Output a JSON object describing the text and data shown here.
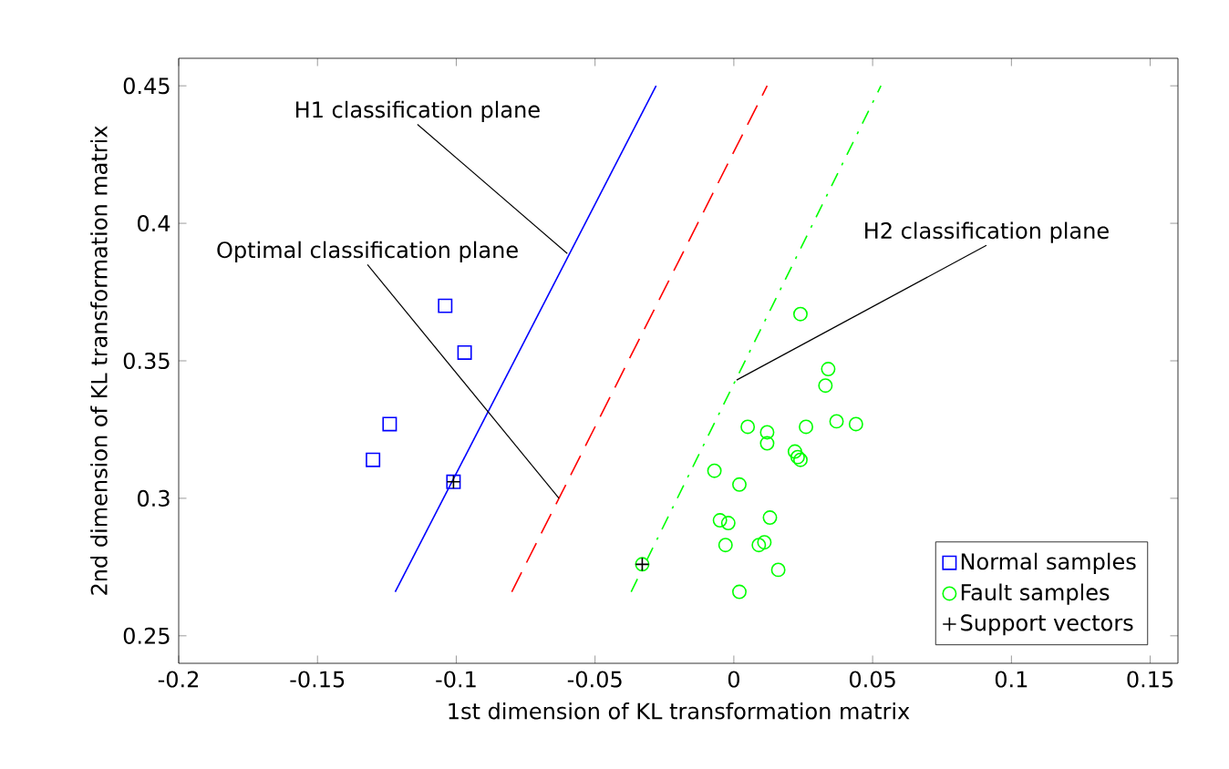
{
  "chart_data": {
    "type": "scatter",
    "xlabel": "1st dimension of KL transformation matrix",
    "ylabel": "2nd dimension of KL transformation matrix",
    "xlim": [
      -0.2,
      0.16
    ],
    "ylim": [
      0.24,
      0.46
    ],
    "xticks": [
      -0.2,
      -0.15,
      -0.1,
      -0.05,
      0,
      0.05,
      0.1,
      0.15
    ],
    "yticks": [
      0.25,
      0.3,
      0.35,
      0.4,
      0.45
    ],
    "grid": false,
    "legend": "bottom right",
    "series": [
      {
        "name": "Normal samples",
        "color": "#0000ff",
        "marker": "square",
        "x": [
          -0.104,
          -0.097,
          -0.124,
          -0.13,
          -0.101
        ],
        "values": [
          0.37,
          0.353,
          0.327,
          0.314,
          0.306
        ]
      },
      {
        "name": "Fault samples",
        "color": "#00ff00",
        "marker": "circle",
        "x": [
          0.024,
          0.034,
          0.033,
          0.037,
          0.044,
          0.026,
          0.005,
          0.012,
          0.012,
          0.022,
          0.024,
          0.023,
          -0.007,
          0.002,
          -0.005,
          -0.002,
          0.013,
          -0.003,
          0.011,
          0.009,
          0.016,
          0.002,
          -0.033
        ],
        "values": [
          0.367,
          0.347,
          0.341,
          0.328,
          0.327,
          0.326,
          0.326,
          0.324,
          0.32,
          0.317,
          0.314,
          0.315,
          0.31,
          0.305,
          0.292,
          0.291,
          0.293,
          0.283,
          0.284,
          0.283,
          0.274,
          0.266,
          0.276
        ]
      },
      {
        "name": "Support vectors",
        "color": "#000000",
        "marker": "cross",
        "x": [
          -0.101,
          -0.033
        ],
        "values": [
          0.306,
          0.276
        ]
      },
      {
        "type": "line",
        "color": "#0000ff",
        "line_style": "solid",
        "marker": "none",
        "x": [
          -0.122,
          -0.028
        ],
        "values": [
          0.266,
          0.45
        ]
      },
      {
        "type": "line",
        "color": "#ff0000",
        "line_style": "dashed",
        "marker": "none",
        "x": [
          -0.08,
          0.012
        ],
        "values": [
          0.266,
          0.45
        ]
      },
      {
        "type": "line",
        "color": "#00ff00",
        "line_style": "dashdot",
        "marker": "none",
        "x": [
          -0.037,
          0.053
        ],
        "values": [
          0.266,
          0.45
        ]
      }
    ],
    "annotations": [
      {
        "text": "H1 classification plane",
        "x": -0.06,
        "y": 0.389
      },
      {
        "text": "Optimal classification plane",
        "x": -0.063,
        "y": 0.3
      },
      {
        "text": "H2 classification plane",
        "x": 0.001,
        "y": 0.343
      }
    ]
  }
}
